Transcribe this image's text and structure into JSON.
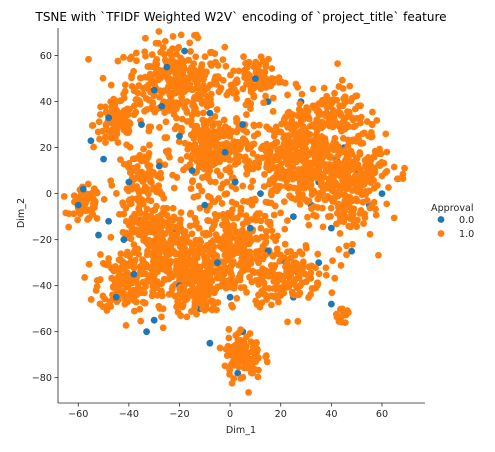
{
  "chart_data": {
    "type": "scatter",
    "title": "TSNE with `TFIDF Weighted W2V` encoding of `project_title` feature",
    "xlabel": "Dim_1",
    "ylabel": "Dim_2",
    "xlim": [
      -68,
      77
    ],
    "ylim": [
      -91,
      72
    ],
    "xticks": [
      -60,
      -40,
      -20,
      0,
      20,
      40,
      60
    ],
    "yticks": [
      -80,
      -60,
      -40,
      -20,
      0,
      20,
      40,
      60
    ],
    "grid": false,
    "legend": {
      "title": "Approval",
      "placement": "right",
      "entries": [
        "0.0",
        "1.0"
      ]
    },
    "colors": {
      "0.0": "#1f77b4",
      "1.0": "#ff7f0e"
    },
    "series": [
      {
        "name": "0.0",
        "color": "#1f77b4",
        "points": [
          [
            -55,
            23
          ],
          [
            -58,
            2
          ],
          [
            -50,
            15
          ],
          [
            -42,
            -20
          ],
          [
            -48,
            -12
          ],
          [
            -35,
            30
          ],
          [
            -30,
            45
          ],
          [
            -25,
            55
          ],
          [
            -20,
            25
          ],
          [
            -15,
            10
          ],
          [
            -10,
            -5
          ],
          [
            -8,
            35
          ],
          [
            -2,
            18
          ],
          [
            5,
            30
          ],
          [
            10,
            50
          ],
          [
            15,
            40
          ],
          [
            20,
            10
          ],
          [
            25,
            -10
          ],
          [
            30,
            25
          ],
          [
            35,
            5
          ],
          [
            40,
            -15
          ],
          [
            45,
            20
          ],
          [
            50,
            10
          ],
          [
            55,
            -5
          ],
          [
            -45,
            -45
          ],
          [
            -38,
            -35
          ],
          [
            -30,
            -55
          ],
          [
            -20,
            -40
          ],
          [
            -12,
            -50
          ],
          [
            -5,
            -30
          ],
          [
            0,
            -45
          ],
          [
            5,
            -60
          ],
          [
            10,
            -70
          ],
          [
            15,
            -25
          ],
          [
            25,
            -45
          ],
          [
            35,
            -30
          ],
          [
            40,
            -48
          ],
          [
            -60,
            -5
          ],
          [
            -52,
            -18
          ],
          [
            -40,
            5
          ],
          [
            -28,
            12
          ],
          [
            -22,
            -15
          ],
          [
            2,
            5
          ],
          [
            8,
            -15
          ],
          [
            18,
            22
          ],
          [
            28,
            40
          ],
          [
            38,
            35
          ],
          [
            48,
            -25
          ],
          [
            60,
            0
          ],
          [
            -8,
            -65
          ],
          [
            3,
            -78
          ],
          [
            -33,
            -60
          ],
          [
            -18,
            62
          ],
          [
            -27,
            38
          ],
          [
            32,
            -5
          ],
          [
            -48,
            33
          ],
          [
            12,
            0
          ],
          [
            22,
            -30
          ],
          [
            -35,
            -12
          ],
          [
            42,
            15
          ]
        ]
      },
      {
        "name": "1.0",
        "color": "#ff7f0e",
        "clusters": [
          {
            "center": [
              -22,
              48
            ],
            "spread": [
              13,
              12
            ],
            "count": 320
          },
          {
            "center": [
              -45,
              30
            ],
            "spread": [
              6,
              7
            ],
            "count": 90
          },
          {
            "center": [
              -57,
              -5
            ],
            "spread": [
              4,
              5
            ],
            "count": 60
          },
          {
            "center": [
              -35,
              5
            ],
            "spread": [
              7,
              9
            ],
            "count": 120
          },
          {
            "center": [
              -40,
              -38
            ],
            "spread": [
              8,
              9
            ],
            "count": 140
          },
          {
            "center": [
              -22,
              -30
            ],
            "spread": [
              13,
              12
            ],
            "count": 340
          },
          {
            "center": [
              -6,
              18
            ],
            "spread": [
              10,
              12
            ],
            "count": 260
          },
          {
            "center": [
              0,
              -25
            ],
            "spread": [
              10,
              14
            ],
            "count": 260
          },
          {
            "center": [
              10,
              50
            ],
            "spread": [
              7,
              6
            ],
            "count": 90
          },
          {
            "center": [
              28,
              15
            ],
            "spread": [
              14,
              15
            ],
            "count": 420
          },
          {
            "center": [
              45,
              0
            ],
            "spread": [
              8,
              14
            ],
            "count": 150
          },
          {
            "center": [
              40,
              35
            ],
            "spread": [
              9,
              8
            ],
            "count": 110
          },
          {
            "center": [
              55,
              15
            ],
            "spread": [
              6,
              10
            ],
            "count": 70
          },
          {
            "center": [
              22,
              -35
            ],
            "spread": [
              10,
              9
            ],
            "count": 150
          },
          {
            "center": [
              5,
              -70
            ],
            "spread": [
              5,
              7
            ],
            "count": 110
          },
          {
            "center": [
              -30,
              -15
            ],
            "spread": [
              8,
              6
            ],
            "count": 90
          },
          {
            "center": [
              45,
              -52
            ],
            "spread": [
              2,
              2
            ],
            "count": 15
          },
          {
            "center": [
              68,
              8
            ],
            "spread": [
              1.5,
              1.5
            ],
            "count": 5
          },
          {
            "center": [
              -12,
              -45
            ],
            "spread": [
              6,
              6
            ],
            "count": 80
          }
        ]
      }
    ]
  }
}
